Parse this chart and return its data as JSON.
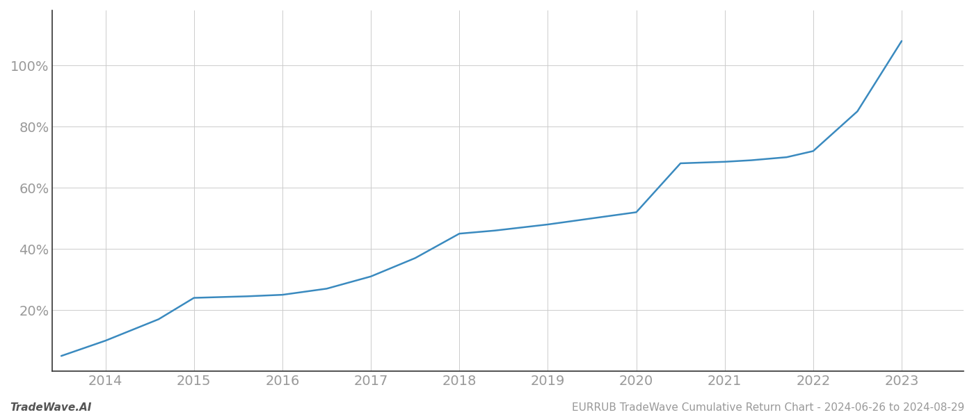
{
  "x_years": [
    2014,
    2015,
    2016,
    2017,
    2018,
    2019,
    2020,
    2021,
    2022,
    2023
  ],
  "x_data": [
    2013.5,
    2014.0,
    2014.6,
    2015.0,
    2015.6,
    2016.0,
    2016.5,
    2017.0,
    2017.5,
    2018.0,
    2018.4,
    2019.0,
    2019.5,
    2020.0,
    2020.5,
    2021.0,
    2021.3,
    2021.7,
    2022.0,
    2022.5,
    2023.0
  ],
  "y_data": [
    5,
    10,
    17,
    24,
    24.5,
    25,
    27,
    31,
    37,
    45,
    46,
    48,
    50,
    52,
    68,
    68.5,
    69,
    70,
    72,
    85,
    108
  ],
  "line_color": "#3a8abf",
  "line_width": 1.8,
  "background_color": "#ffffff",
  "grid_color": "#cccccc",
  "ytick_labels": [
    "20%",
    "40%",
    "60%",
    "80%",
    "100%"
  ],
  "ytick_values": [
    20,
    40,
    60,
    80,
    100
  ],
  "xlim": [
    2013.4,
    2023.7
  ],
  "ylim": [
    0,
    118
  ],
  "footer_left": "TradeWave.AI",
  "footer_right": "EURRUB TradeWave Cumulative Return Chart - 2024-06-26 to 2024-08-29",
  "tick_fontsize": 14,
  "footer_fontsize": 11,
  "left_spine_color": "#333333",
  "bottom_spine_color": "#333333"
}
